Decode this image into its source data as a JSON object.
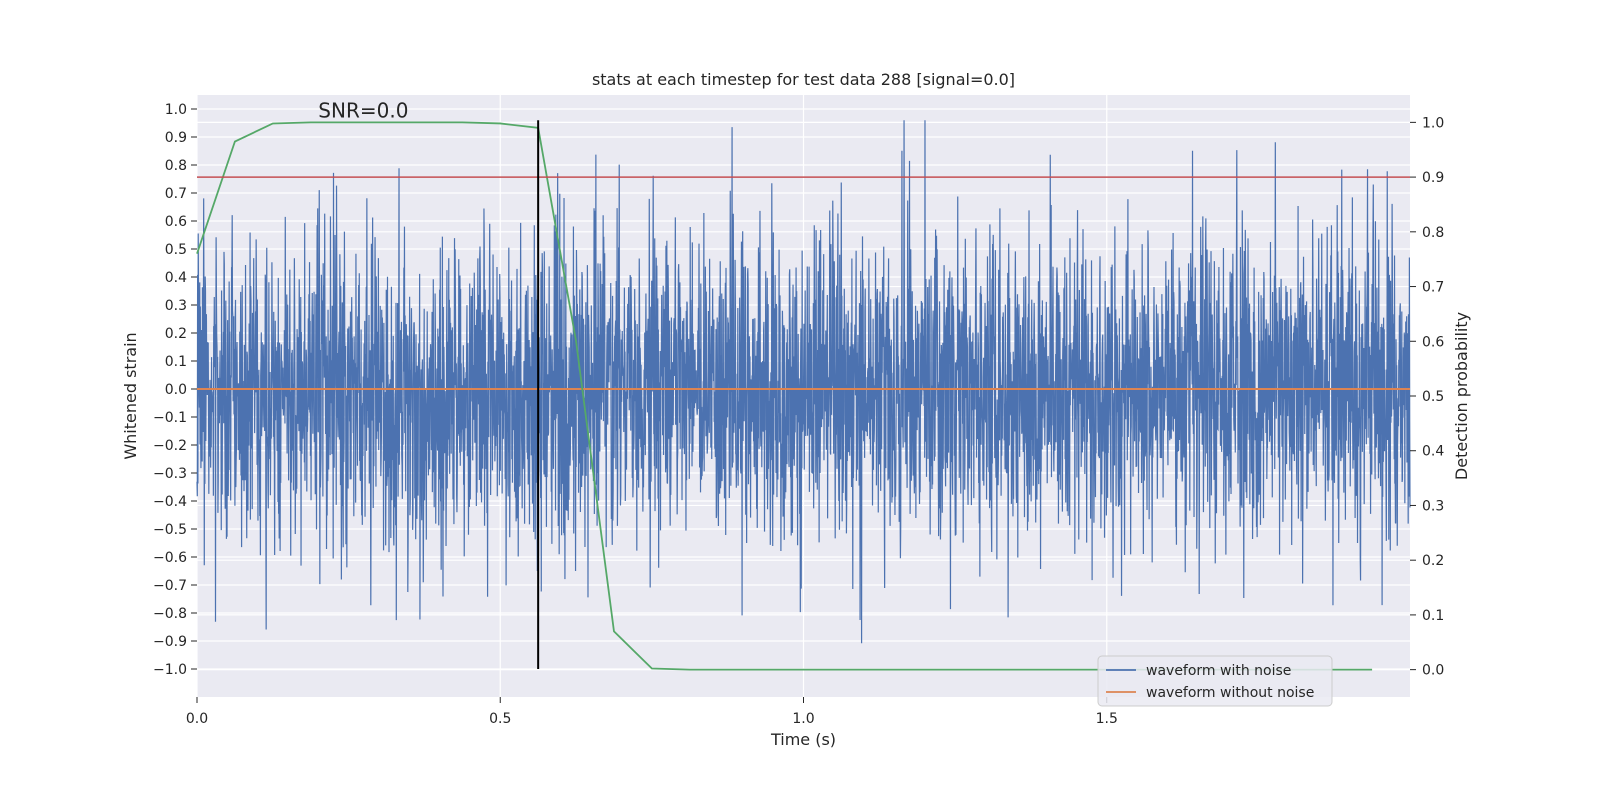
{
  "chart_data": {
    "type": "line",
    "title": "stats at each timestep for test data 288 [signal=0.0]",
    "xlabel": "Time (s)",
    "ylabel": "Whitened strain",
    "y2label": "Detection probability",
    "annotation": "SNR=0.0",
    "xlim": [
      0.0,
      2.0
    ],
    "ylim": [
      -1.1,
      1.05
    ],
    "y2lim": [
      -0.05,
      1.05
    ],
    "xticks": [
      0.0,
      0.5,
      1.0,
      1.5
    ],
    "xtick_labels": [
      "0.0",
      "0.5",
      "1.0",
      "1.5"
    ],
    "yticks": [
      1.0,
      0.9,
      0.8,
      0.7,
      0.6,
      0.5,
      0.4,
      0.3,
      0.2,
      0.1,
      0.0,
      -0.1,
      -0.2,
      -0.3,
      -0.4,
      -0.5,
      -0.6,
      -0.7,
      -0.8,
      -0.9,
      -1.0
    ],
    "ytick_labels": [
      "1.0",
      "0.9",
      "0.8",
      "0.7",
      "0.6",
      "0.5",
      "0.4",
      "0.3",
      "0.2",
      "0.1",
      "0.0",
      "−0.1",
      "−0.2",
      "−0.3",
      "−0.4",
      "−0.5",
      "−0.6",
      "−0.7",
      "−0.8",
      "−0.9",
      "−1.0"
    ],
    "y2ticks": [
      1.0,
      0.9,
      0.8,
      0.7,
      0.6,
      0.5,
      0.4,
      0.3,
      0.2,
      0.1,
      0.0
    ],
    "y2tick_labels": [
      "1.0",
      "0.9",
      "0.8",
      "0.7",
      "0.6",
      "0.5",
      "0.4",
      "0.3",
      "0.2",
      "0.1",
      "0.0"
    ],
    "grid": true,
    "legend_position": "lower-right",
    "series": [
      {
        "name": "waveform with noise",
        "color": "#4c72b0",
        "axis": "left",
        "note": "dense noise samples",
        "amplitude_range": [
          -0.99,
          0.96
        ],
        "typical_std": 0.28
      },
      {
        "name": "waveform without noise",
        "color": "#dd8452",
        "axis": "left",
        "x": [
          0.0,
          2.0
        ],
        "y": [
          0.0,
          0.0
        ]
      },
      {
        "color": "#55a868",
        "axis": "right",
        "x": [
          0.0,
          0.0625,
          0.125,
          0.1875,
          0.25,
          0.3125,
          0.375,
          0.4375,
          0.5,
          0.5625,
          0.625,
          0.6875,
          0.75,
          0.8125,
          0.875,
          0.9375,
          1.0,
          1.0625,
          1.125,
          1.1875,
          1.25,
          1.3125,
          1.375,
          1.4375,
          1.5,
          1.5625,
          1.625,
          1.6875,
          1.75,
          1.8125,
          1.875,
          1.9375
        ],
        "y": [
          0.76,
          0.965,
          0.998,
          1.0,
          1.0,
          1.0,
          1.0,
          1.0,
          0.998,
          0.99,
          0.6,
          0.07,
          0.002,
          0.0,
          0.0,
          0.0,
          0.0,
          0.0,
          0.0,
          0.0,
          0.0,
          0.0,
          0.0,
          0.0,
          0.0,
          0.0,
          0.0,
          0.0,
          0.0,
          0.0,
          0.0,
          0.0
        ]
      },
      {
        "color": "#c44e52",
        "axis": "right",
        "kind": "threshold",
        "y": 0.9
      },
      {
        "color": "#000000",
        "axis": "left",
        "kind": "vertical-marker",
        "x": 0.5625,
        "y": [
          -1.0,
          0.96
        ]
      }
    ]
  }
}
